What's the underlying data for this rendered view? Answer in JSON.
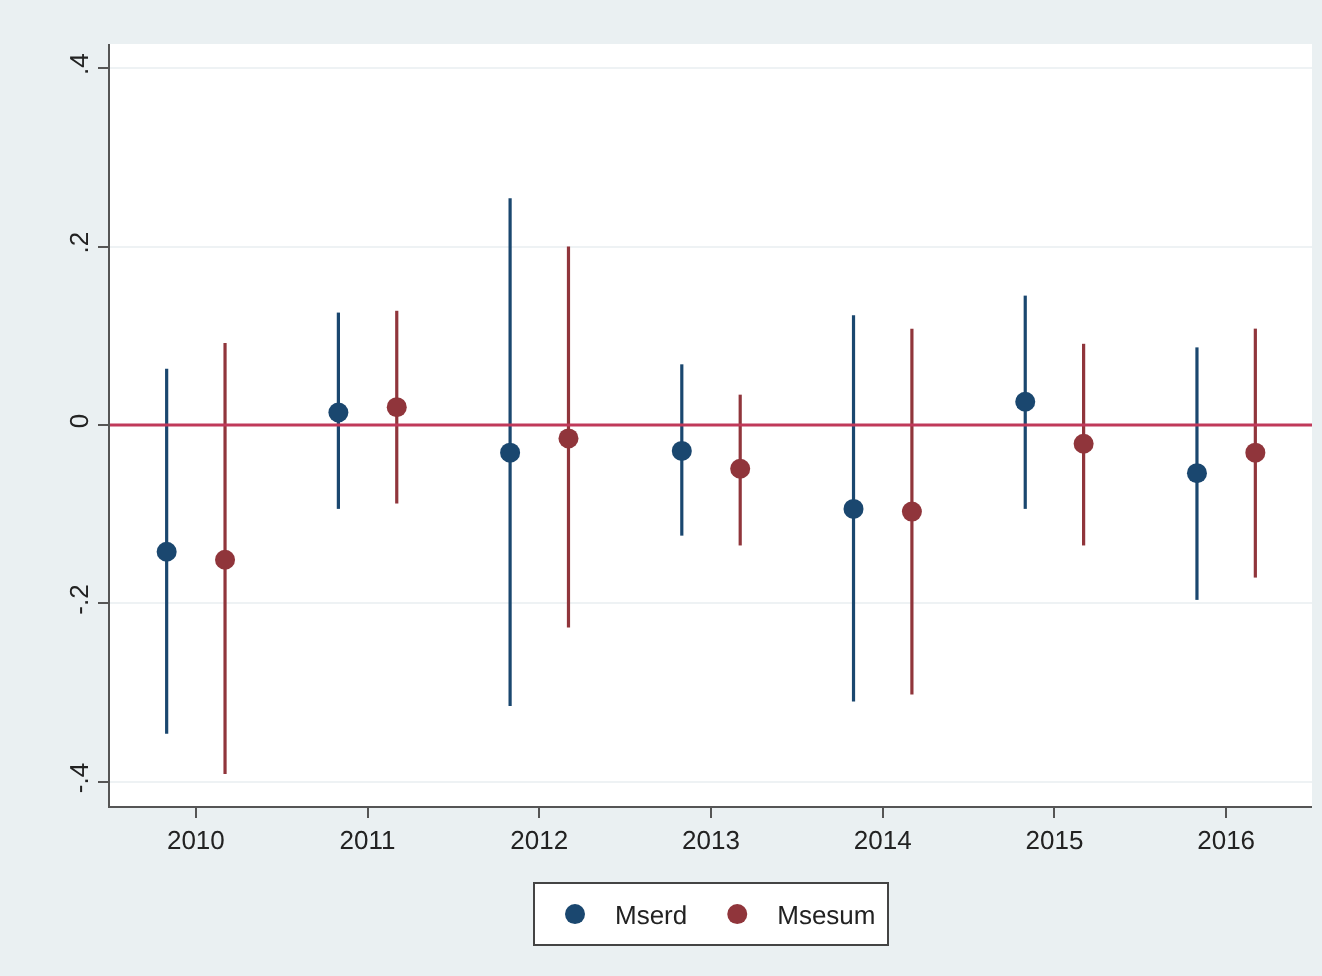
{
  "chart_data": {
    "type": "scatter",
    "marker": "circle",
    "grid": "y",
    "legend": "bottom",
    "xlim": [
      2009.5,
      2016.5
    ],
    "xticks": [
      2010,
      2011,
      2012,
      2013,
      2014,
      2015,
      2016
    ],
    "ylim": [
      -0.427,
      0.427
    ],
    "yticks": [
      {
        "value": -0.4,
        "label": "-.4"
      },
      {
        "value": -0.2,
        "label": "-.2"
      },
      0,
      {
        "value": 0.2,
        "label": ".2"
      },
      {
        "value": 0.4,
        "label": ".4"
      }
    ],
    "ref_lines": [
      {
        "axis": "y",
        "value": 0,
        "color": "#c0395a"
      }
    ],
    "series": [
      {
        "name": "Mserd",
        "color": "#1a476f",
        "x": [
          2009.83,
          2010.83,
          2011.83,
          2012.83,
          2013.83,
          2014.83,
          2015.83
        ],
        "values": [
          -0.142,
          0.014,
          -0.031,
          -0.029,
          -0.094,
          0.026,
          -0.054
        ],
        "errors": [
          [
            -0.346,
            0.063
          ],
          [
            -0.094,
            0.126
          ],
          [
            -0.315,
            0.254
          ],
          [
            -0.124,
            0.068
          ],
          [
            -0.31,
            0.123
          ],
          [
            -0.094,
            0.145
          ],
          [
            -0.196,
            0.087
          ]
        ]
      },
      {
        "name": "Msesum",
        "color": "#90353b",
        "x": [
          2010.17,
          2011.17,
          2012.17,
          2013.17,
          2014.17,
          2015.17,
          2016.17
        ],
        "values": [
          -0.151,
          0.02,
          -0.015,
          -0.049,
          -0.097,
          -0.021,
          -0.031
        ],
        "errors": [
          [
            -0.391,
            0.092
          ],
          [
            -0.088,
            0.128
          ],
          [
            -0.227,
            0.2
          ],
          [
            -0.135,
            0.034
          ],
          [
            -0.302,
            0.108
          ],
          [
            -0.135,
            0.091
          ],
          [
            -0.171,
            0.108
          ]
        ]
      }
    ]
  }
}
